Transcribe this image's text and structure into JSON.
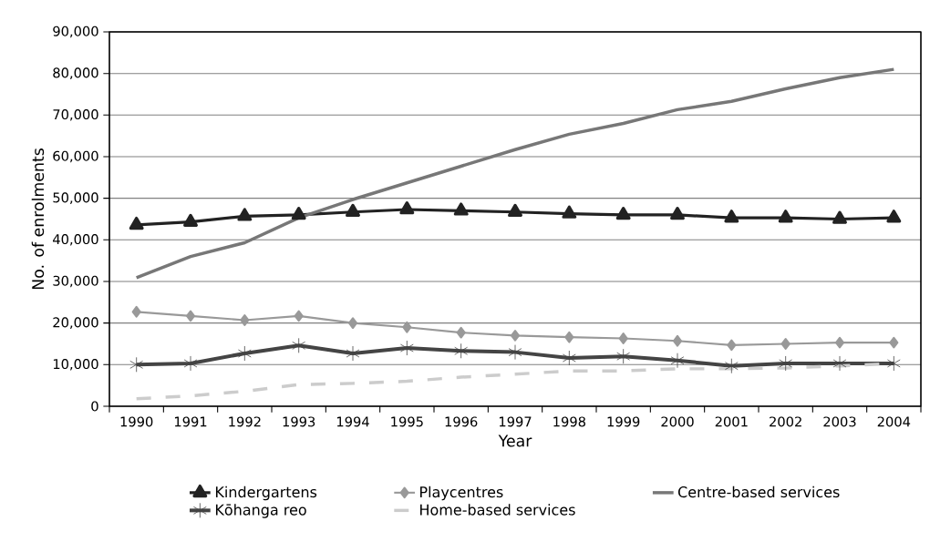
{
  "chart_data": {
    "type": "line",
    "xlabel": "Year",
    "ylabel": "No. of enrolments",
    "categories": [
      "1990",
      "1991",
      "1992",
      "1993",
      "1994",
      "1995",
      "1996",
      "1997",
      "1998",
      "1999",
      "2000",
      "2001",
      "2002",
      "2003",
      "2004"
    ],
    "ylim": [
      0,
      90000
    ],
    "yticks": [
      0,
      {
        "value": 10000,
        "label": "10,000"
      },
      {
        "value": 20000,
        "label": "20,000"
      },
      {
        "value": 30000,
        "label": "30,000"
      },
      {
        "value": 40000,
        "label": "40,000"
      },
      {
        "value": 50000,
        "label": "50,000"
      },
      {
        "value": 60000,
        "label": "60,000"
      },
      {
        "value": 70000,
        "label": "70,000"
      },
      {
        "value": 80000,
        "label": "80,000"
      },
      {
        "value": 90000,
        "label": "90,000"
      }
    ],
    "grid": "y",
    "legend": "bottom",
    "series": [
      {
        "name": "Kindergartens",
        "color": "#222222",
        "marker": "triangle",
        "line_style": "solid",
        "values": [
          43600,
          44300,
          45700,
          46000,
          46700,
          47300,
          47000,
          46700,
          46300,
          46000,
          46000,
          45300,
          45300,
          45000,
          45300
        ]
      },
      {
        "name": "Playcentres",
        "color": "#999999",
        "marker": "diamond",
        "line_style": "solid",
        "values": [
          22700,
          21700,
          20700,
          21700,
          20000,
          19000,
          17700,
          17000,
          16600,
          16300,
          15700,
          14700,
          15000,
          15300,
          15300
        ]
      },
      {
        "name": "Centre-based services",
        "color": "#777777",
        "marker": "none",
        "line_style": "solid",
        "values": [
          30900,
          36000,
          39300,
          45300,
          49700,
          53700,
          57700,
          61700,
          65400,
          68000,
          71300,
          73300,
          76300,
          79000,
          81000
        ]
      },
      {
        "name": "Kōhanga reo",
        "color": "#444444",
        "marker": "cross",
        "line_style": "solid",
        "values": [
          10000,
          10300,
          12700,
          14600,
          12700,
          14000,
          13300,
          13000,
          11600,
          12000,
          11000,
          9700,
          10300,
          10300,
          10300
        ]
      },
      {
        "name": "Home-based services",
        "color": "#cccccc",
        "marker": "none",
        "line_style": "dashed",
        "values": [
          1800,
          2500,
          3600,
          5200,
          5500,
          6000,
          7000,
          7700,
          8500,
          8500,
          9000,
          9000,
          9200,
          9700,
          10300
        ]
      }
    ]
  }
}
